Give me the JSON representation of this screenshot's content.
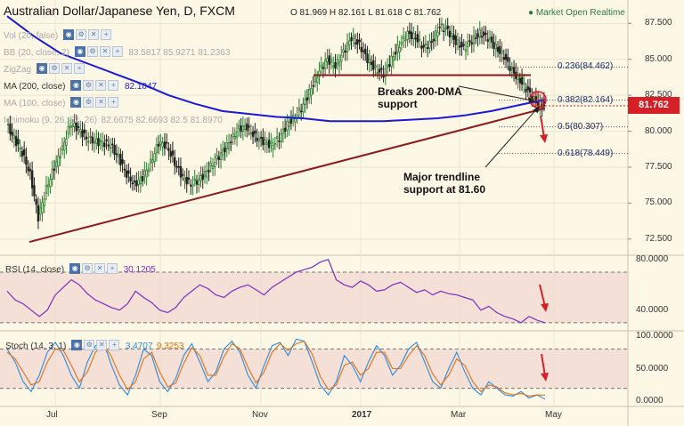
{
  "header": {
    "title": "Australian Dollar/Japanese Yen, D, FXCM",
    "ohlc": "O 81.969 H 82.161 L 81.618 C 81.762",
    "market_status": "Market Open Realtime"
  },
  "indicators": [
    {
      "label": "Vol (20, false)"
    },
    {
      "label": "BB (20, close, 2)",
      "values": "83.5817 85.9271 81.2363"
    },
    {
      "label": "ZigZag"
    },
    {
      "label": "MA (200, close)",
      "values": "82.1047"
    },
    {
      "label": "MA (100, close)"
    },
    {
      "label": "Ichimoku (9, 26, 52, 26)",
      "values": "82.6675 82.6693 82.5 81.8970"
    }
  ],
  "price_badge": "81.762",
  "annotations": {
    "breaks_dma_line1": "Breaks 200-DMA",
    "breaks_dma_line2": "support",
    "trendline_line1": "Major trendline",
    "trendline_line2": "support at 81.60"
  },
  "colors": {
    "price_up": "#2e7d32",
    "price_down": "#222222",
    "ma200": "#1a1ad6",
    "trendline": "#8b1a1a",
    "rsi_line": "#7b2fbf",
    "stoch_k": "#2a8ae0",
    "stoch_d": "#e0701a",
    "badge": "#d62027"
  },
  "chart_data": [
    {
      "type": "candlestick",
      "title": "Australian Dollar/Japanese Yen, D, FXCM",
      "ylim": [
        71.5,
        89
      ],
      "y_ticks": [
        "87.500",
        "85.000",
        "82.500",
        "80.000",
        "77.500",
        "75.000",
        "72.500"
      ],
      "x_ticks": [
        "Jul",
        "Sep",
        "Nov",
        "2017",
        "Mar",
        "May"
      ],
      "last_close": 81.762,
      "ma200_last": 82.1047,
      "fib_levels": [
        {
          "label": "0.236(84.462)",
          "value": 84.462
        },
        {
          "label": "0.382(82.164)",
          "value": 82.164
        },
        {
          "label": "0.5(80.307)",
          "value": 80.307
        },
        {
          "label": "0.618(78.449)",
          "value": 78.449
        }
      ],
      "trendline_support": 81.6,
      "resistance_line": 83.9,
      "close_path": [
        80.5,
        79.5,
        78.5,
        77.0,
        74.0,
        76.0,
        77.5,
        78.8,
        80.5,
        80.2,
        79.5,
        79.3,
        79.2,
        79.0,
        78.2,
        77.0,
        76.3,
        76.8,
        77.8,
        79.2,
        79.0,
        77.8,
        76.8,
        76.3,
        76.6,
        77.2,
        77.9,
        78.6,
        79.4,
        80.2,
        80.3,
        79.6,
        79.3,
        79.0,
        79.5,
        80.5,
        81.0,
        81.8,
        83.0,
        84.2,
        85.0,
        84.5,
        85.5,
        86.5,
        86.0,
        85.0,
        84.3,
        84.0,
        85.0,
        86.0,
        86.8,
        86.5,
        85.8,
        86.2,
        87.3,
        87.0,
        86.2,
        85.8,
        86.3,
        86.8,
        86.5,
        85.8,
        85.2,
        84.2,
        83.5,
        82.8,
        82.0,
        81.76
      ]
    },
    {
      "type": "line",
      "title": "RSI (14, close)",
      "value_label": "30.1205",
      "ylim": [
        25,
        82
      ],
      "y_ticks": [
        "80.0000",
        "40.0000"
      ],
      "levels": [
        70,
        30
      ],
      "values": [
        55,
        48,
        45,
        40,
        35,
        40,
        52,
        58,
        64,
        60,
        53,
        48,
        45,
        42,
        40,
        45,
        55,
        50,
        46,
        40,
        38,
        42,
        50,
        55,
        60,
        57,
        52,
        50,
        55,
        58,
        60,
        56,
        52,
        58,
        62,
        66,
        70,
        72,
        74,
        78,
        80,
        64,
        60,
        58,
        63,
        60,
        55,
        56,
        60,
        62,
        58,
        54,
        56,
        52,
        55,
        53,
        52,
        50,
        48,
        40,
        43,
        38,
        35,
        33,
        30,
        35,
        32,
        30
      ]
    },
    {
      "type": "line",
      "title": "Stoch (14, 3, 1)",
      "k_label": "3.4707",
      "d_label": "9.3253",
      "ylim": [
        -5,
        105
      ],
      "y_ticks": [
        "100.0000",
        "50.0000",
        "0.0000"
      ],
      "levels": [
        80,
        20
      ],
      "series": [
        {
          "values": [
            80,
            60,
            30,
            15,
            40,
            75,
            90,
            70,
            40,
            20,
            60,
            85,
            90,
            55,
            25,
            10,
            40,
            80,
            70,
            30,
            15,
            35,
            70,
            88,
            60,
            30,
            45,
            80,
            92,
            75,
            40,
            20,
            55,
            85,
            90,
            70,
            95,
            92,
            60,
            25,
            10,
            30,
            70,
            55,
            30,
            60,
            85,
            70,
            40,
            55,
            80,
            90,
            60,
            30,
            20,
            50,
            75,
            45,
            20,
            10,
            30,
            20,
            10,
            8,
            15,
            5,
            10,
            3.47
          ]
        },
        {
          "values": [
            75,
            65,
            45,
            25,
            30,
            60,
            80,
            78,
            55,
            30,
            45,
            75,
            88,
            68,
            40,
            18,
            30,
            65,
            75,
            45,
            22,
            28,
            58,
            82,
            70,
            40,
            40,
            68,
            88,
            80,
            52,
            28,
            45,
            75,
            88,
            78,
            88,
            92,
            72,
            38,
            18,
            25,
            55,
            60,
            40,
            50,
            75,
            75,
            50,
            50,
            70,
            85,
            70,
            42,
            25,
            40,
            65,
            55,
            30,
            15,
            25,
            22,
            13,
            10,
            12,
            8,
            10,
            9.33
          ]
        }
      ]
    }
  ]
}
